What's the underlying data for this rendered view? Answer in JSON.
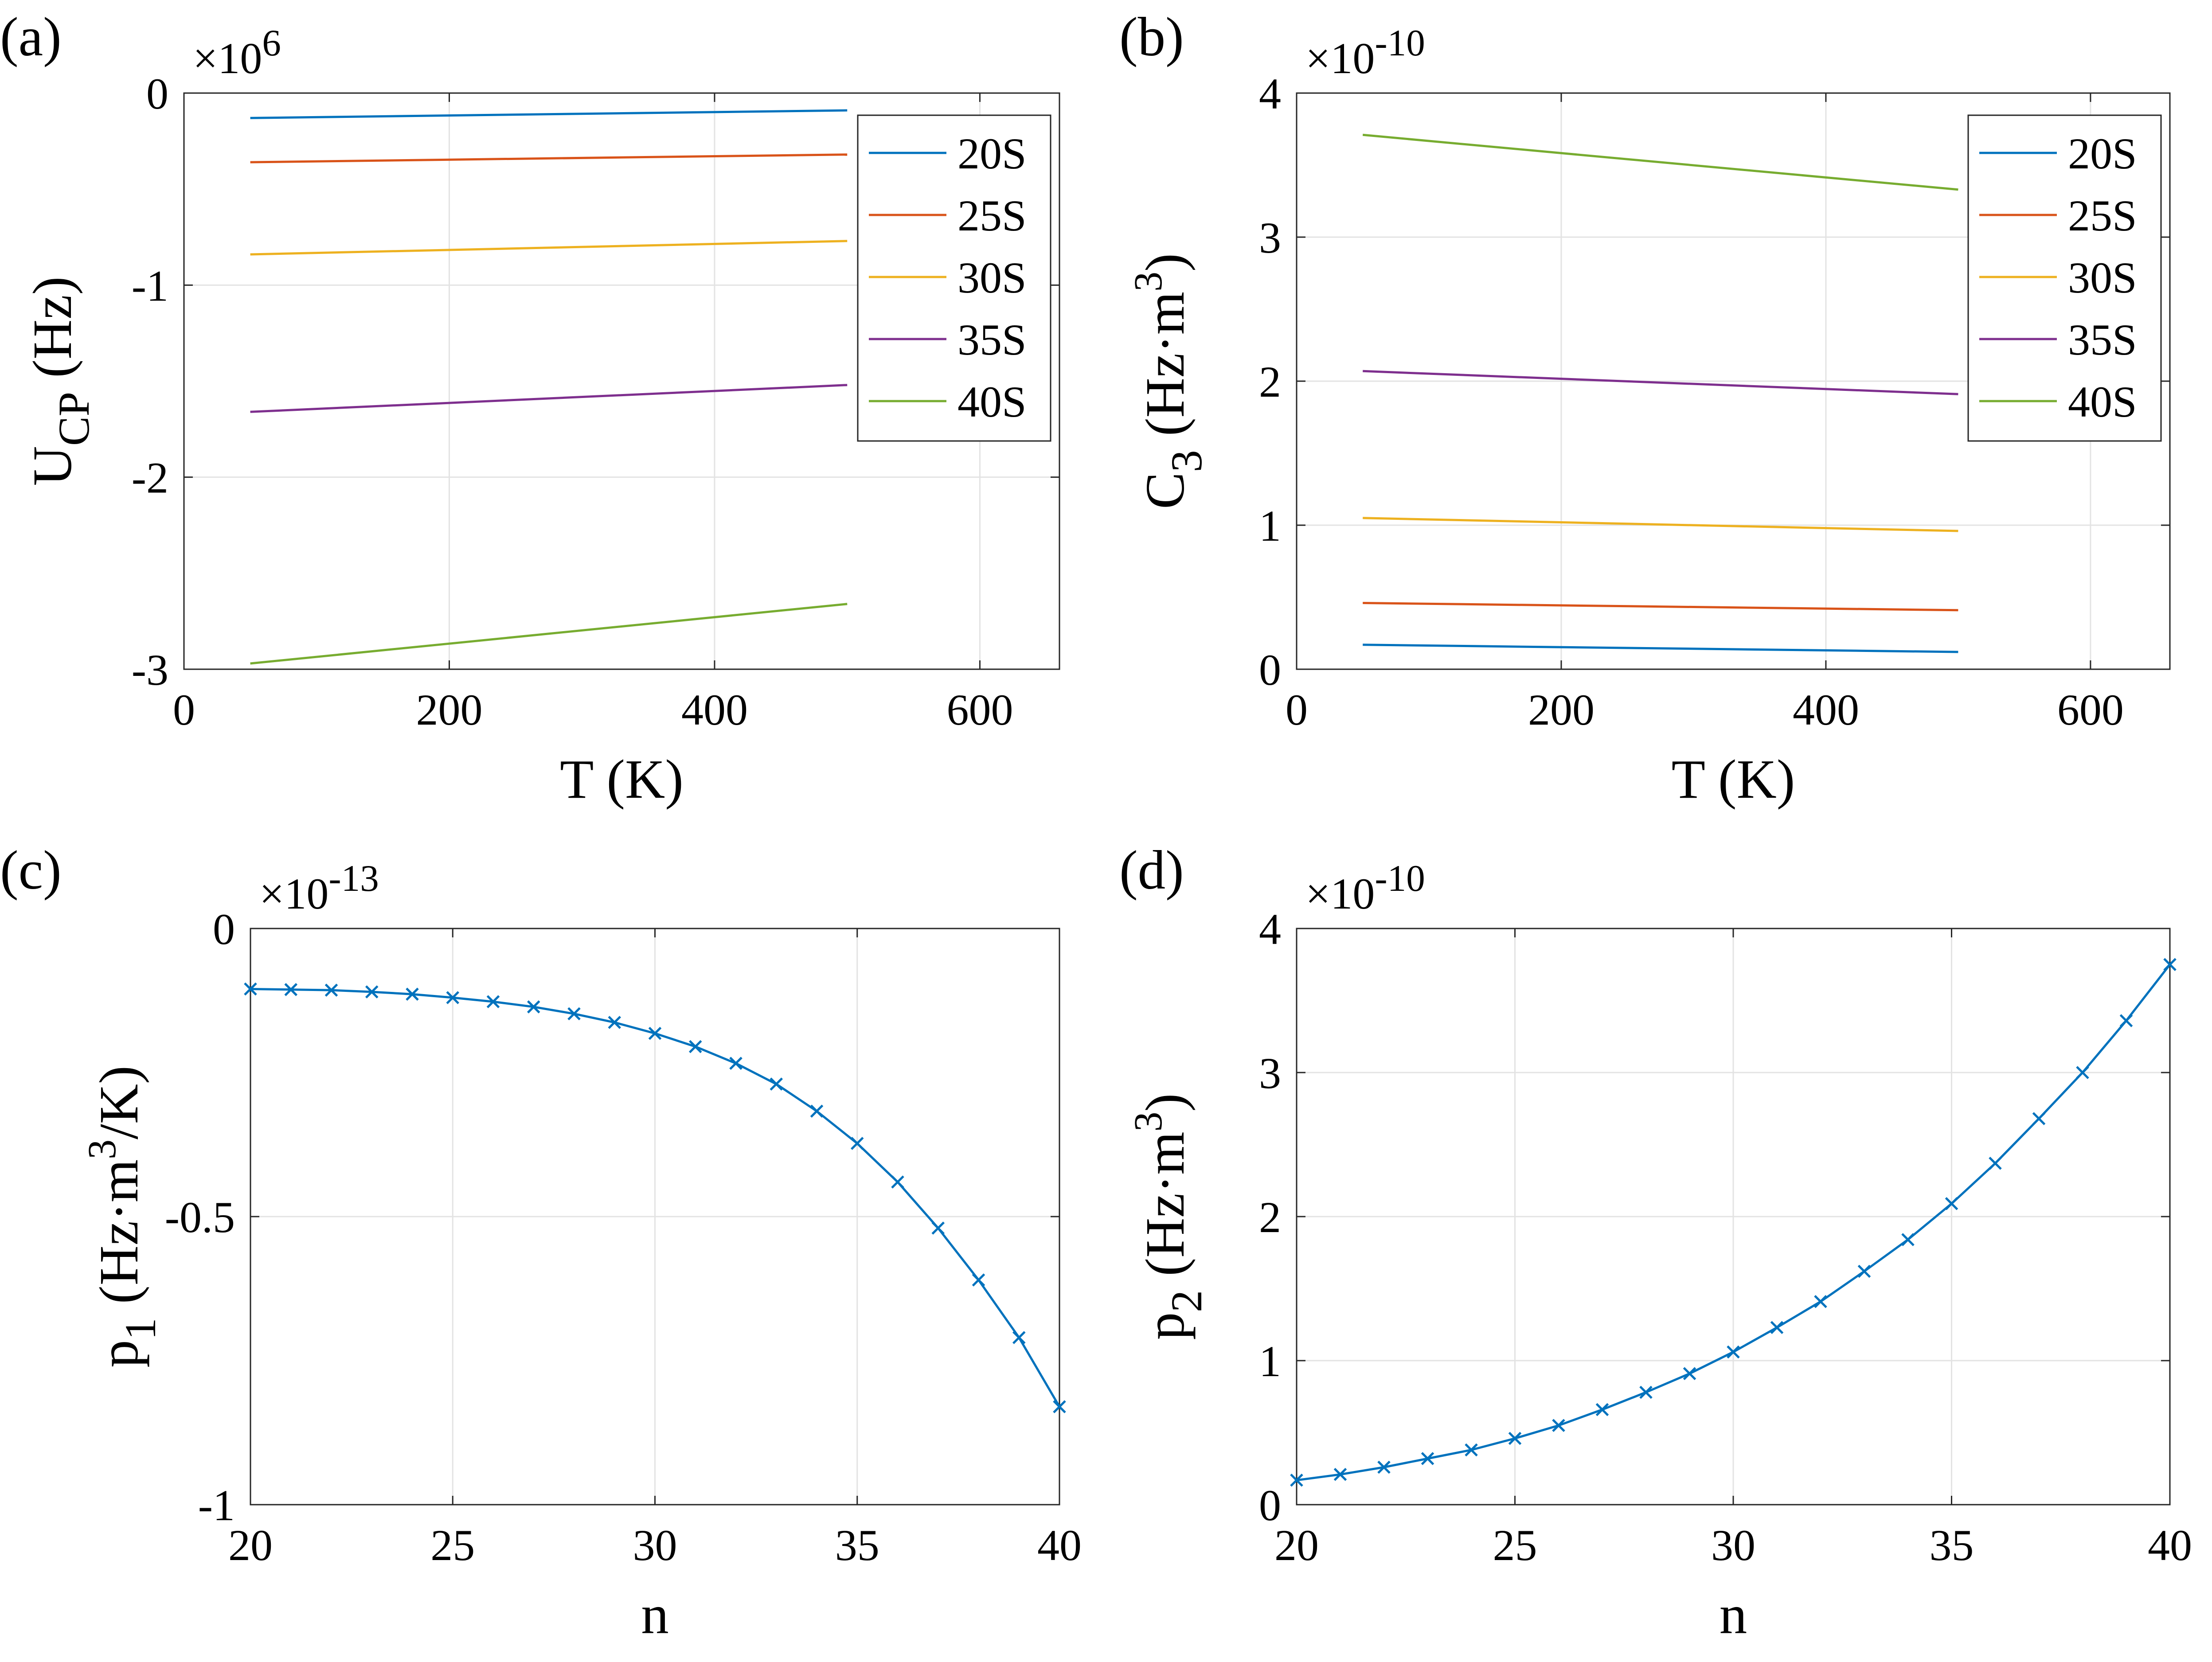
{
  "colors": {
    "20S": "#0072BD",
    "25S": "#D95319",
    "30S": "#EDB120",
    "35S": "#7E2F8E",
    "40S": "#77AC30",
    "marker": "#0072BD"
  },
  "chart_data": [
    {
      "panel": "(a)",
      "type": "line",
      "xlabel": "T (K)",
      "ylabel_main": "U",
      "ylabel_sub": "CP",
      "ylabel_unit": "(Hz)",
      "exponent_prefix": "×10",
      "exponent": "6",
      "xlim": [
        0,
        660
      ],
      "ylim": [
        -3,
        0
      ],
      "xticks": [
        0,
        200,
        400,
        600
      ],
      "xtick_labels": [
        "0",
        "200",
        "400",
        "600"
      ],
      "yticks": [
        -3,
        -2,
        -1,
        0
      ],
      "ytick_labels": [
        "-3",
        "-2",
        "-1",
        "0"
      ],
      "legend": "top-right",
      "series": [
        {
          "name": "20S",
          "x": [
            50,
            500
          ],
          "y": [
            -0.13,
            -0.09
          ]
        },
        {
          "name": "25S",
          "x": [
            50,
            500
          ],
          "y": [
            -0.36,
            -0.32
          ]
        },
        {
          "name": "30S",
          "x": [
            50,
            500
          ],
          "y": [
            -0.84,
            -0.77
          ]
        },
        {
          "name": "35S",
          "x": [
            50,
            500
          ],
          "y": [
            -1.66,
            -1.52
          ]
        },
        {
          "name": "40S",
          "x": [
            50,
            500
          ],
          "y": [
            -2.97,
            -2.66
          ]
        }
      ]
    },
    {
      "panel": "(b)",
      "type": "line",
      "xlabel": "T (K)",
      "ylabel_main": "C",
      "ylabel_sub": "3",
      "ylabel_unit": "(Hz·m",
      "ylabel_sup": "3",
      "ylabel_close": ")",
      "exponent_prefix": "×10",
      "exponent": "-10",
      "xlim": [
        0,
        660
      ],
      "ylim": [
        0,
        4
      ],
      "xticks": [
        0,
        200,
        400,
        600
      ],
      "xtick_labels": [
        "0",
        "200",
        "400",
        "600"
      ],
      "yticks": [
        0,
        1,
        2,
        3,
        4
      ],
      "ytick_labels": [
        "0",
        "1",
        "2",
        "3",
        "4"
      ],
      "legend": "top-right",
      "series": [
        {
          "name": "20S",
          "x": [
            50,
            500
          ],
          "y": [
            0.17,
            0.12
          ]
        },
        {
          "name": "25S",
          "x": [
            50,
            500
          ],
          "y": [
            0.46,
            0.41
          ]
        },
        {
          "name": "30S",
          "x": [
            50,
            500
          ],
          "y": [
            1.05,
            0.96
          ]
        },
        {
          "name": "35S",
          "x": [
            50,
            500
          ],
          "y": [
            2.07,
            1.91
          ]
        },
        {
          "name": "40S",
          "x": [
            50,
            500
          ],
          "y": [
            3.71,
            3.33
          ]
        }
      ]
    },
    {
      "panel": "(c)",
      "type": "line",
      "xlabel": "n",
      "ylabel_main": "p",
      "ylabel_sub": "1",
      "ylabel_unit": "(Hz·m",
      "ylabel_sup": "3",
      "ylabel_close": "/K)",
      "exponent_prefix": "×10",
      "exponent": "-13",
      "xlim": [
        20,
        40
      ],
      "ylim": [
        -1,
        0
      ],
      "xticks": [
        20,
        25,
        30,
        35,
        40
      ],
      "xtick_labels": [
        "20",
        "25",
        "30",
        "35",
        "40"
      ],
      "yticks": [
        -1,
        -0.5,
        0
      ],
      "ytick_labels": [
        "-1",
        "-0.5",
        "0"
      ],
      "legend": "none",
      "series": [
        {
          "name": "p1",
          "x": [
            20,
            21,
            22,
            23,
            24,
            25,
            26,
            27,
            28,
            29,
            30,
            31,
            32,
            33,
            34,
            35,
            36,
            37,
            38,
            39,
            40
          ],
          "y": [
            -0.105,
            -0.106,
            -0.107,
            -0.11,
            -0.114,
            -0.12,
            -0.127,
            -0.136,
            -0.148,
            -0.163,
            -0.182,
            -0.205,
            -0.234,
            -0.27,
            -0.317,
            -0.373,
            -0.44,
            -0.52,
            -0.61,
            -0.71,
            -0.83
          ]
        }
      ]
    },
    {
      "panel": "(d)",
      "type": "line",
      "xlabel": "n",
      "ylabel_main": "p",
      "ylabel_sub": "2",
      "ylabel_unit": "(Hz·m",
      "ylabel_sup": "3",
      "ylabel_close": ")",
      "exponent_prefix": "×10",
      "exponent": "-10",
      "xlim": [
        20,
        40
      ],
      "ylim": [
        0,
        4
      ],
      "xticks": [
        20,
        25,
        30,
        35,
        40
      ],
      "xtick_labels": [
        "20",
        "25",
        "30",
        "35",
        "40"
      ],
      "yticks": [
        0,
        1,
        2,
        3,
        4
      ],
      "ytick_labels": [
        "0",
        "1",
        "2",
        "3",
        "4"
      ],
      "legend": "none",
      "series": [
        {
          "name": "p2",
          "x": [
            20,
            21,
            22,
            23,
            24,
            25,
            26,
            27,
            28,
            29,
            30,
            31,
            32,
            33,
            34,
            35,
            36,
            37,
            38,
            39,
            40
          ],
          "y": [
            0.17,
            0.21,
            0.26,
            0.32,
            0.38,
            0.46,
            0.55,
            0.66,
            0.78,
            0.91,
            1.06,
            1.23,
            1.41,
            1.62,
            1.84,
            2.09,
            2.37,
            2.68,
            3.0,
            3.36,
            3.75
          ]
        }
      ]
    }
  ]
}
